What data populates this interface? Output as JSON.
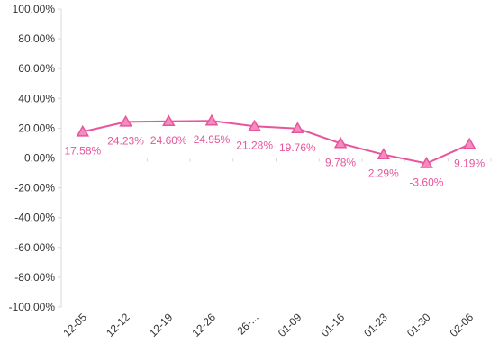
{
  "chart_data": {
    "type": "line",
    "title": "",
    "xlabel": "",
    "ylabel": "",
    "ylim": [
      -100,
      100
    ],
    "y_ticks": [
      "100.00%",
      "80.00%",
      "60.00%",
      "40.00%",
      "20.00%",
      "0.00%",
      "-20.00%",
      "-40.00%",
      "-60.00%",
      "-80.00%",
      "-100.00%"
    ],
    "y_tick_values": [
      100,
      80,
      60,
      40,
      20,
      0,
      -20,
      -40,
      -60,
      -80,
      -100
    ],
    "categories": [
      "12-05",
      "12-12",
      "12-19",
      "12-26",
      "26-...",
      "01-09",
      "01-16",
      "01-23",
      "01-30",
      "02-06"
    ],
    "grid": false,
    "legend": "none",
    "series": [
      {
        "values": [
          17.58,
          24.23,
          24.6,
          24.95,
          21.28,
          19.76,
          9.78,
          2.29,
          -3.6,
          9.19
        ],
        "labels": [
          "17.58%",
          "24.23%",
          "24.60%",
          "24.95%",
          "21.28%",
          "19.76%",
          "9.78%",
          "2.29%",
          "-3.60%",
          "9.19%"
        ],
        "marker": "triangle",
        "color": "#e8559c",
        "marker_fill": "#f48cbf"
      }
    ]
  }
}
